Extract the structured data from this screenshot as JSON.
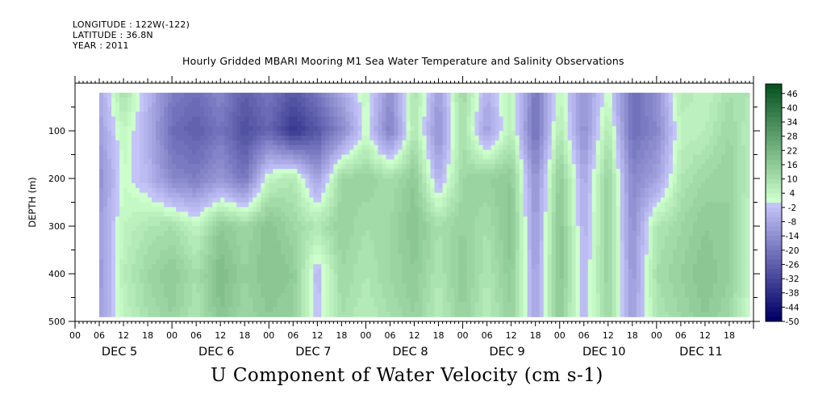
{
  "header": {
    "longitude": "LONGITUDE : 122W(-122)",
    "latitude": "LATITUDE : 36.8N",
    "year": "YEAR : 2011",
    "title": "Hourly Gridded MBARI Mooring M1 Sea Water Temperature and Salinity Observations"
  },
  "chart_data": {
    "type": "heatmap",
    "title": "Hourly Gridded MBARI Mooring M1 Sea Water Temperature and Salinity Observations",
    "xlabel": "U Component of Water Velocity (cm s-1)",
    "ylabel": "DEPTH (m)",
    "x_domain_hours": [
      0,
      168
    ],
    "data_x_range_hours": [
      6,
      167
    ],
    "y_domain_m": [
      0,
      500
    ],
    "data_y_range_m": [
      20,
      490
    ],
    "y_reversed": true,
    "y_ticks": [
      100,
      200,
      300,
      400,
      500
    ],
    "y_tick_labels": [
      "100",
      "200",
      "300",
      "400",
      "500"
    ],
    "x_hour_labels": [
      "00",
      "06",
      "12",
      "18",
      "00",
      "06",
      "12",
      "18",
      "00",
      "06",
      "12",
      "18",
      "00",
      "06",
      "12",
      "18",
      "00",
      "06",
      "12",
      "18",
      "00",
      "06",
      "12",
      "18",
      "00",
      "06",
      "12",
      "18"
    ],
    "x_day_labels": [
      "DEC  5",
      "DEC  6",
      "DEC  7",
      "DEC  8",
      "DEC  9",
      "DEC 10",
      "DEC 11"
    ],
    "colorbar": {
      "min": -50,
      "max": 50,
      "step": 2,
      "labels": [
        "46",
        "40",
        "34",
        "28",
        "22",
        "16",
        "10",
        "4",
        "-2",
        "-8",
        "-14",
        "-20",
        "-26",
        "-32",
        "-38",
        "-44",
        "-50"
      ],
      "negative_color_dark": "#000066",
      "negative_color_light": "#ccccff",
      "positive_color_light": "#ccffcc",
      "positive_color_dark": "#004d1a"
    },
    "field_samples_hour": [
      6,
      12,
      18,
      24,
      30,
      36,
      42,
      48,
      54,
      60,
      66,
      72,
      78,
      84,
      90,
      96,
      102,
      108,
      114,
      120,
      126,
      132,
      138,
      144,
      150,
      156,
      162,
      167
    ],
    "field_samples_depth_m": [
      20,
      100,
      200,
      300,
      400,
      490
    ],
    "field_values": [
      [
        -8,
        10,
        -4,
        -18,
        -22,
        -16,
        -26,
        -20,
        -28,
        -20,
        -8,
        4,
        -14,
        10,
        -10,
        12,
        -6,
        6,
        -20,
        4,
        -12,
        2,
        -22,
        -14,
        8,
        4,
        10,
        8
      ],
      [
        -10,
        4,
        -6,
        -22,
        -26,
        -20,
        -30,
        -24,
        -36,
        -28,
        -16,
        2,
        -18,
        8,
        -14,
        10,
        -10,
        6,
        -22,
        8,
        -14,
        8,
        -22,
        -16,
        4,
        6,
        12,
        6
      ],
      [
        -14,
        2,
        -4,
        -16,
        -18,
        -12,
        -20,
        4,
        8,
        -10,
        12,
        14,
        10,
        16,
        -6,
        12,
        14,
        16,
        -14,
        16,
        -8,
        14,
        -16,
        -10,
        8,
        12,
        14,
        6
      ],
      [
        -10,
        4,
        8,
        10,
        4,
        16,
        12,
        18,
        12,
        8,
        14,
        10,
        12,
        18,
        10,
        14,
        10,
        18,
        -12,
        18,
        -6,
        14,
        -14,
        8,
        12,
        16,
        14,
        4
      ],
      [
        -12,
        6,
        12,
        16,
        10,
        20,
        14,
        18,
        16,
        -4,
        12,
        8,
        12,
        16,
        8,
        16,
        8,
        16,
        -10,
        18,
        -4,
        14,
        -12,
        10,
        14,
        18,
        14,
        4
      ],
      [
        -10,
        4,
        10,
        14,
        8,
        18,
        12,
        16,
        14,
        -2,
        10,
        6,
        10,
        14,
        6,
        14,
        6,
        14,
        -8,
        16,
        -4,
        12,
        -10,
        8,
        12,
        16,
        12,
        2
      ]
    ]
  }
}
